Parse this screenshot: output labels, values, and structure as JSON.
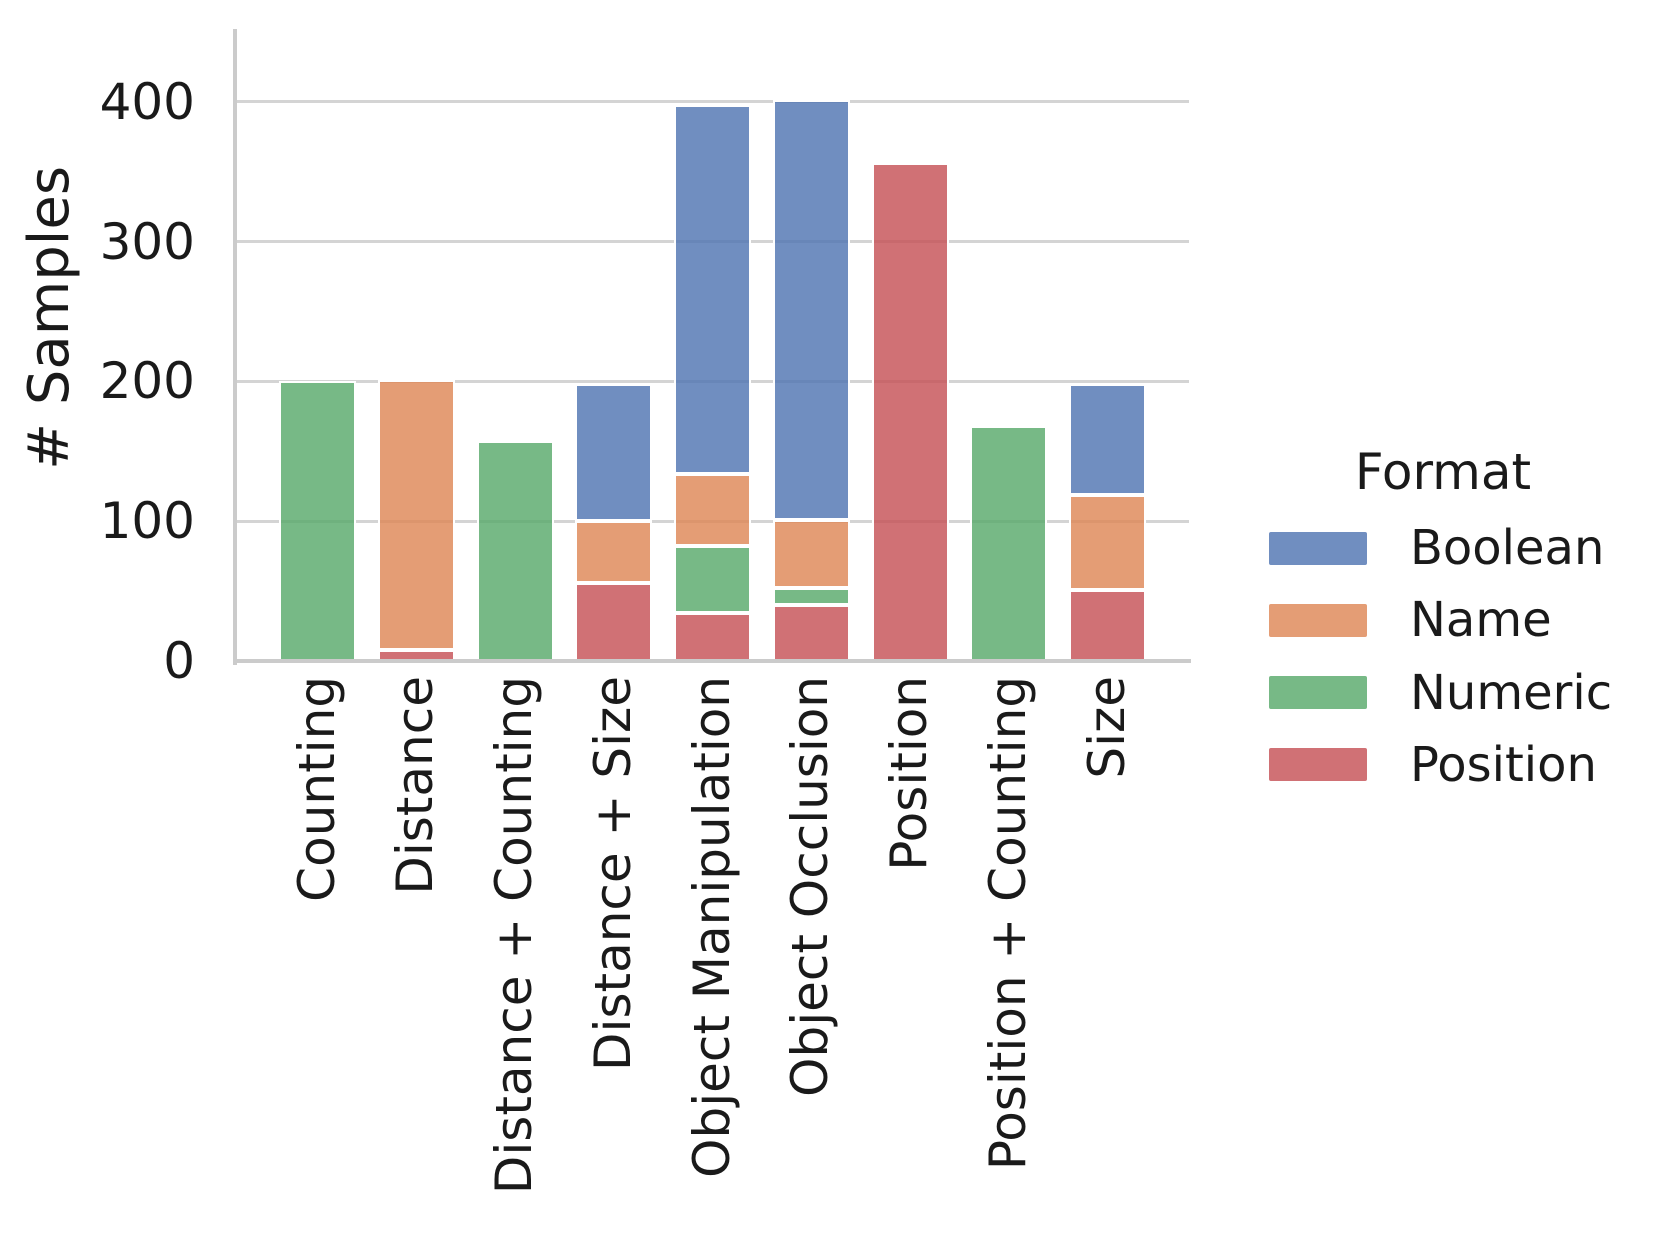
{
  "figure": {
    "ylabel": "# Samples",
    "background_color": "#ffffff",
    "text_color": "#1a1a1a",
    "gridline_color": "#d4d4d4",
    "spine_color": "#cbcbcb"
  },
  "legend": {
    "title": "Format",
    "entries": [
      {
        "label": "Boolean",
        "color": "rgba(76,114,176,0.8)",
        "color_on_white": "#708ec0"
      },
      {
        "label": "Name",
        "color": "rgba(221,132,82,0.8)",
        "color_on_white": "#e49d75"
      },
      {
        "label": "Numeric",
        "color": "rgba(85,168,104,0.8)",
        "color_on_white": "#77b986"
      },
      {
        "label": "Position",
        "color": "rgba(196,78,82,0.8)",
        "color_on_white": "#d07175"
      }
    ]
  },
  "chart_data": {
    "type": "bar",
    "stacked": true,
    "orientation": "vertical",
    "title": "",
    "xlabel": "",
    "ylabel": "# Samples",
    "categories": [
      "Counting",
      "Distance",
      "Distance + Counting",
      "Distance + Size",
      "Object Manipulation",
      "Object Occlusion",
      "Position",
      "Position + Counting",
      "Size"
    ],
    "series": [
      {
        "name": "Boolean",
        "values": [
          0,
          0,
          0,
          98,
          264,
          300,
          0,
          0,
          79
        ]
      },
      {
        "name": "Name",
        "values": [
          0,
          193,
          0,
          44,
          52,
          49,
          0,
          0,
          68
        ]
      },
      {
        "name": "Numeric",
        "values": [
          200,
          0,
          157,
          0,
          48,
          12,
          0,
          168,
          0
        ]
      },
      {
        "name": "Position",
        "values": [
          0,
          8,
          0,
          56,
          34,
          40,
          356,
          0,
          51
        ]
      }
    ],
    "totals": [
      200,
      201,
      157,
      198,
      398,
      401,
      356,
      168,
      198
    ],
    "stack_order_bottom_to_top": [
      "Position",
      "Numeric",
      "Name",
      "Boolean"
    ],
    "yticks": [
      0,
      100,
      200,
      300,
      400
    ],
    "ylim": [
      0,
      452
    ],
    "grid": "horizontal",
    "legend_title": "Format",
    "legend_position": "right-of-plot"
  }
}
